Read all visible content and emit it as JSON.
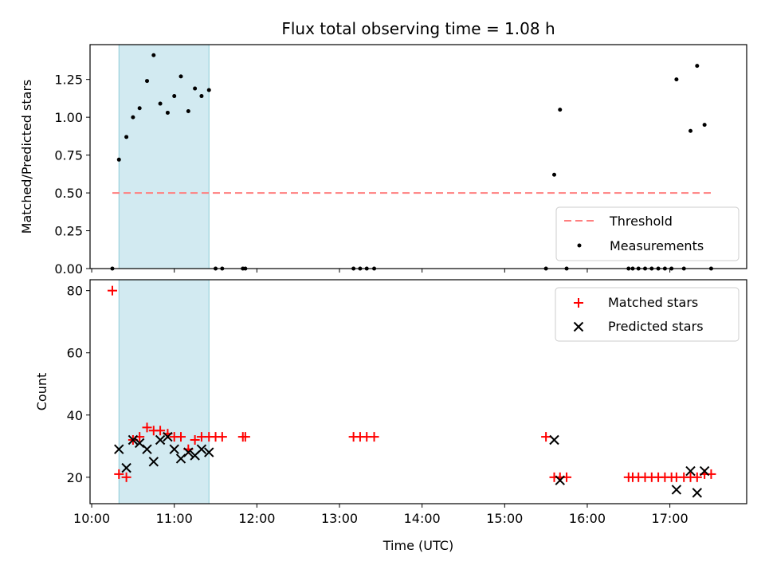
{
  "chart_data": {
    "title": "Flux total observing time = 1.08 h",
    "shared_xaxis": {
      "label": "Time (UTC)",
      "range_hours": [
        9.98,
        17.93
      ],
      "ticks": [
        {
          "value": 10,
          "label": "10:00"
        },
        {
          "value": 11,
          "label": "11:00"
        },
        {
          "value": 12,
          "label": "12:00"
        },
        {
          "value": 13,
          "label": "13:00"
        },
        {
          "value": 14,
          "label": "14:00"
        },
        {
          "value": 15,
          "label": "15:00"
        },
        {
          "value": 16,
          "label": "16:00"
        },
        {
          "value": 17,
          "label": "17:00"
        }
      ]
    },
    "shaded_span": {
      "x0": 10.33,
      "x1": 11.42,
      "color": "#add8e6"
    },
    "panels": [
      {
        "type": "scatter",
        "ylabel": "Matched/Predicted stars",
        "ylim": [
          0,
          1.48
        ],
        "yticks": [
          "0.00",
          "0.25",
          "0.50",
          "0.75",
          "1.00",
          "1.25"
        ],
        "ytick_values": [
          0,
          0.25,
          0.5,
          0.75,
          1.0,
          1.25
        ],
        "legend": {
          "placement": "lower right",
          "entries": [
            "Threshold",
            "Measurements"
          ]
        },
        "threshold": {
          "name": "Threshold",
          "y": 0.5,
          "x0": 10.25,
          "x1": 17.5,
          "color": "#ff7f7f"
        },
        "series": [
          {
            "name": "Measurements",
            "color": "#000000",
            "points": [
              [
                10.25,
                0.0
              ],
              [
                10.33,
                0.72
              ],
              [
                10.42,
                0.87
              ],
              [
                10.5,
                1.0
              ],
              [
                10.58,
                1.06
              ],
              [
                10.67,
                1.24
              ],
              [
                10.75,
                1.41
              ],
              [
                10.83,
                1.09
              ],
              [
                10.92,
                1.03
              ],
              [
                11.0,
                1.14
              ],
              [
                11.08,
                1.27
              ],
              [
                11.17,
                1.04
              ],
              [
                11.25,
                1.19
              ],
              [
                11.33,
                1.14
              ],
              [
                11.42,
                1.18
              ],
              [
                11.5,
                0.0
              ],
              [
                11.58,
                0.0
              ],
              [
                11.83,
                0.0
              ],
              [
                11.86,
                0.0
              ],
              [
                13.17,
                0.0
              ],
              [
                13.25,
                0.0
              ],
              [
                13.33,
                0.0
              ],
              [
                13.42,
                0.0
              ],
              [
                15.5,
                0.0
              ],
              [
                15.6,
                0.62
              ],
              [
                15.67,
                1.05
              ],
              [
                15.75,
                0.0
              ],
              [
                16.5,
                0.0
              ],
              [
                16.55,
                0.0
              ],
              [
                16.62,
                0.0
              ],
              [
                16.7,
                0.0
              ],
              [
                16.78,
                0.0
              ],
              [
                16.86,
                0.0
              ],
              [
                16.94,
                0.0
              ],
              [
                17.02,
                0.0
              ],
              [
                17.08,
                1.25
              ],
              [
                17.17,
                0.0
              ],
              [
                17.25,
                0.91
              ],
              [
                17.33,
                1.34
              ],
              [
                17.42,
                0.95
              ],
              [
                17.5,
                0.0
              ]
            ]
          }
        ]
      },
      {
        "type": "scatter",
        "ylabel": "Count",
        "ylim": [
          11.5,
          83.5
        ],
        "yticks": [
          "20",
          "40",
          "60",
          "80"
        ],
        "ytick_values": [
          20,
          40,
          60,
          80
        ],
        "legend": {
          "placement": "upper right",
          "entries": [
            "Matched stars",
            "Predicted stars"
          ]
        },
        "series": [
          {
            "name": "Matched stars",
            "marker": "+",
            "color": "#ff0000",
            "points": [
              [
                10.25,
                80
              ],
              [
                10.33,
                21
              ],
              [
                10.42,
                20
              ],
              [
                10.5,
                32
              ],
              [
                10.58,
                33
              ],
              [
                10.67,
                36
              ],
              [
                10.75,
                35
              ],
              [
                10.83,
                35
              ],
              [
                10.92,
                34
              ],
              [
                11.0,
                33
              ],
              [
                11.08,
                33
              ],
              [
                11.17,
                29
              ],
              [
                11.25,
                32
              ],
              [
                11.33,
                33
              ],
              [
                11.42,
                33
              ],
              [
                11.5,
                33
              ],
              [
                11.58,
                33
              ],
              [
                11.83,
                33
              ],
              [
                11.86,
                33
              ],
              [
                13.17,
                33
              ],
              [
                13.25,
                33
              ],
              [
                13.33,
                33
              ],
              [
                13.42,
                33
              ],
              [
                15.5,
                33
              ],
              [
                15.6,
                20
              ],
              [
                15.67,
                20
              ],
              [
                15.75,
                20
              ],
              [
                16.5,
                20
              ],
              [
                16.55,
                20
              ],
              [
                16.62,
                20
              ],
              [
                16.7,
                20
              ],
              [
                16.78,
                20
              ],
              [
                16.86,
                20
              ],
              [
                16.94,
                20
              ],
              [
                17.02,
                20
              ],
              [
                17.08,
                20
              ],
              [
                17.17,
                20
              ],
              [
                17.25,
                20
              ],
              [
                17.33,
                20
              ],
              [
                17.42,
                21
              ],
              [
                17.5,
                21
              ]
            ]
          },
          {
            "name": "Predicted stars",
            "marker": "x",
            "color": "#000000",
            "points": [
              [
                10.33,
                29
              ],
              [
                10.42,
                23
              ],
              [
                10.5,
                32
              ],
              [
                10.58,
                31
              ],
              [
                10.67,
                29
              ],
              [
                10.75,
                25
              ],
              [
                10.83,
                32
              ],
              [
                10.92,
                33
              ],
              [
                11.0,
                29
              ],
              [
                11.08,
                26
              ],
              [
                11.17,
                28
              ],
              [
                11.25,
                27
              ],
              [
                11.33,
                29
              ],
              [
                11.42,
                28
              ],
              [
                15.6,
                32
              ],
              [
                15.67,
                19
              ],
              [
                17.08,
                16
              ],
              [
                17.25,
                22
              ],
              [
                17.33,
                15
              ],
              [
                17.42,
                22
              ]
            ]
          }
        ]
      }
    ]
  }
}
